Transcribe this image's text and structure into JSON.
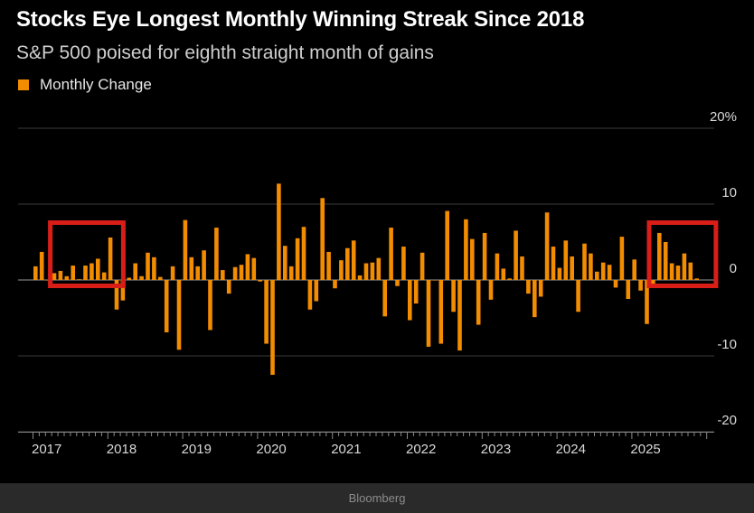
{
  "chart_data": {
    "type": "bar",
    "title": "Stocks Eye Longest Monthly Winning Streak Since 2018",
    "subtitle": "S&P 500 poised for eighth straight month of gains",
    "legend": [
      "Monthly Change"
    ],
    "xlabel": "",
    "ylabel": "",
    "ylim": [
      -20,
      20
    ],
    "y_ticks": [
      {
        "value": 20,
        "label": "20%"
      },
      {
        "value": 10,
        "label": "10"
      },
      {
        "value": 0,
        "label": "0"
      },
      {
        "value": -10,
        "label": "-10"
      },
      {
        "value": -20,
        "label": "-20"
      }
    ],
    "x_ticks": [
      "2017",
      "2018",
      "2019",
      "2020",
      "2021",
      "2022",
      "2023",
      "2024",
      "2025"
    ],
    "start": "2017-01",
    "series": [
      {
        "name": "Monthly Change",
        "color": "#f28c00",
        "values": [
          1.8,
          3.7,
          0.0,
          0.9,
          1.2,
          0.5,
          1.9,
          0.1,
          1.9,
          2.2,
          2.8,
          1.0,
          5.6,
          -3.9,
          -2.7,
          0.3,
          2.2,
          0.5,
          3.6,
          3.0,
          0.4,
          -6.9,
          1.8,
          -9.2,
          7.9,
          3.0,
          1.8,
          3.9,
          -6.6,
          6.9,
          1.3,
          -1.8,
          1.7,
          2.0,
          3.4,
          2.9,
          -0.2,
          -8.4,
          -12.5,
          12.7,
          4.5,
          1.8,
          5.5,
          7.0,
          -3.9,
          -2.8,
          10.8,
          3.7,
          -1.1,
          2.6,
          4.2,
          5.2,
          0.6,
          2.2,
          2.3,
          2.9,
          -4.8,
          6.9,
          -0.8,
          4.4,
          -5.3,
          -3.1,
          3.6,
          -8.8,
          0.0,
          -8.4,
          9.1,
          -4.2,
          -9.3,
          8.0,
          5.4,
          -5.9,
          6.2,
          -2.6,
          3.5,
          1.5,
          0.2,
          6.5,
          3.1,
          -1.8,
          -4.9,
          -2.2,
          8.9,
          4.4,
          1.6,
          5.2,
          3.1,
          -4.2,
          4.8,
          3.5,
          1.1,
          2.3,
          2.0,
          -1.0,
          5.7,
          -2.5,
          2.7,
          -1.4,
          -5.8,
          -0.8,
          6.2,
          5.0,
          2.2,
          1.9,
          3.5,
          2.3,
          0.2
        ]
      }
    ],
    "annotations": [
      {
        "type": "highlight-box",
        "color": "#d91e18",
        "from": "2017-05",
        "to": "2018-01"
      },
      {
        "type": "highlight-box",
        "color": "#d91e18",
        "from": "2025-05",
        "to": "2025-12"
      }
    ]
  },
  "footer": {
    "source": "Bloomberg"
  }
}
